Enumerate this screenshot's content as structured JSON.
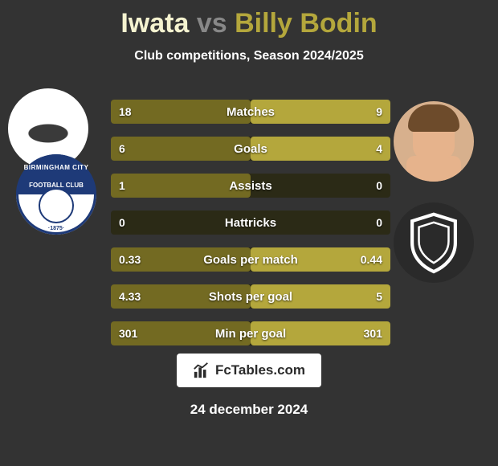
{
  "colors": {
    "player1": "#736a22",
    "player2": "#b4a73c",
    "bar_track": "#2b2a16",
    "background": "#333333",
    "title_p1": "#f5f3d0",
    "title_p2": "#b4a73c",
    "title_vs": "#888888"
  },
  "title": {
    "player1": "Iwata",
    "vs": "vs",
    "player2": "Billy Bodin"
  },
  "subtitle": "Club competitions, Season 2024/2025",
  "club_left": {
    "line1": "BIRMINGHAM CITY",
    "line2": "FOOTBALL CLUB",
    "year": "·1875·"
  },
  "bars": [
    {
      "label": "Matches",
      "left_val": "18",
      "right_val": "9",
      "left_pct": 50,
      "right_pct": 50
    },
    {
      "label": "Goals",
      "left_val": "6",
      "right_val": "4",
      "left_pct": 50,
      "right_pct": 50
    },
    {
      "label": "Assists",
      "left_val": "1",
      "right_val": "0",
      "left_pct": 50,
      "right_pct": 0
    },
    {
      "label": "Hattricks",
      "left_val": "0",
      "right_val": "0",
      "left_pct": 0,
      "right_pct": 0
    },
    {
      "label": "Goals per match",
      "left_val": "0.33",
      "right_val": "0.44",
      "left_pct": 50,
      "right_pct": 50
    },
    {
      "label": "Shots per goal",
      "left_val": "4.33",
      "right_val": "5",
      "left_pct": 50,
      "right_pct": 50
    },
    {
      "label": "Min per goal",
      "left_val": "301",
      "right_val": "301",
      "left_pct": 50,
      "right_pct": 50
    }
  ],
  "logo_text": "FcTables.com",
  "date": "24 december 2024"
}
